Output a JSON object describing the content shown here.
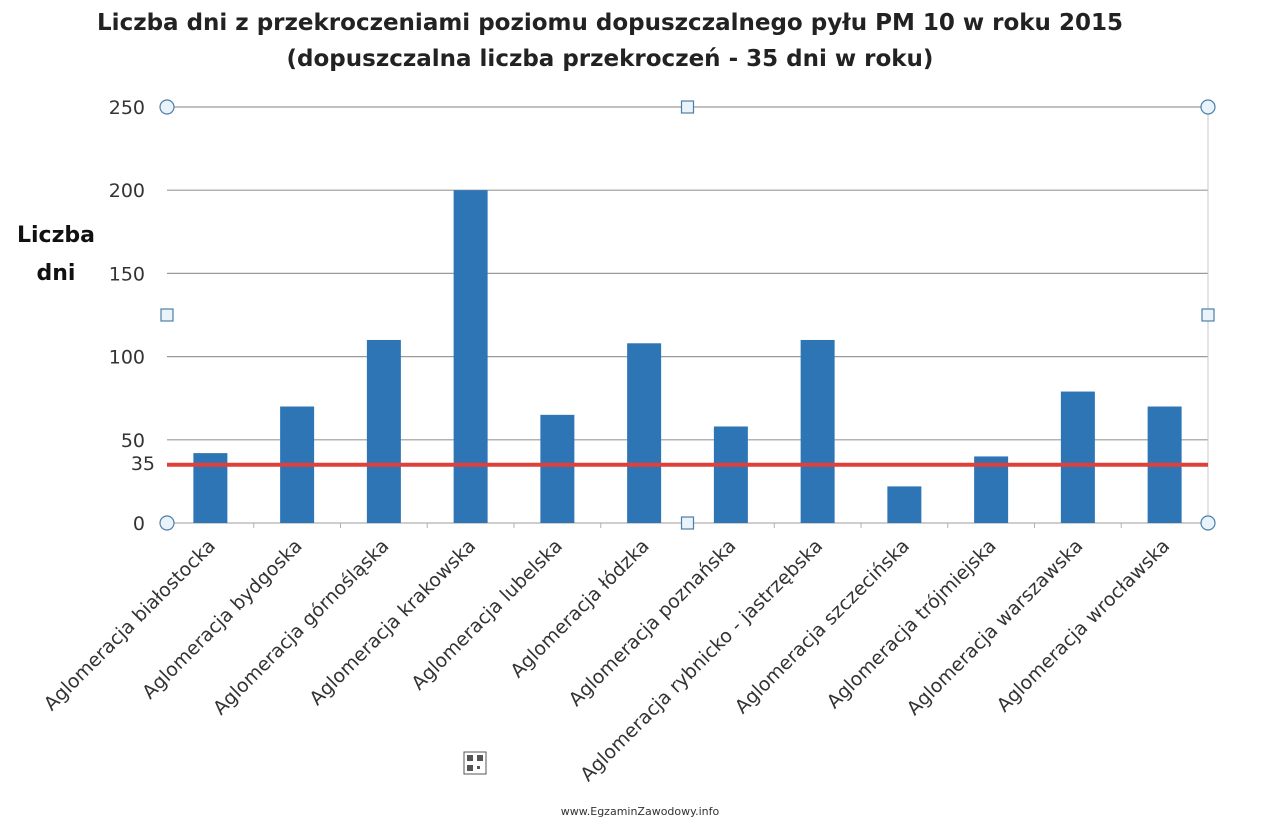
{
  "chart_data": {
    "type": "bar",
    "title": "Liczba dni z przekroczeniami poziomu dopuszczalnego pyłu PM 10 w roku 2015",
    "subtitle": "(dopuszczalna liczba przekroczeń - 35 dni w roku)",
    "ylabel": "Liczba dni",
    "xlabel": "",
    "ylim": [
      0,
      250
    ],
    "yticks": [
      "0",
      "50",
      "100",
      "150",
      "200",
      "250"
    ],
    "grid": true,
    "legend": "none",
    "categories": [
      "Aglomeracja białostocka",
      "Aglomeracja bydgoska",
      "Aglomeracja górnośląska",
      "Aglomeracja krakowska",
      "Aglomeracja lubelska",
      "Aglomeracja łódzka",
      "Aglomeracja poznańska",
      "Aglomeracja rybnicko - jastrzębska",
      "Aglomeracja szczecińska",
      "Aglomeracja trójmiejska",
      "Aglomeracja warszawska",
      "Aglomeracja wrocławska"
    ],
    "values": [
      42,
      70,
      110,
      200,
      65,
      108,
      58,
      110,
      22,
      40,
      79,
      70
    ],
    "bar_color": "#2E75B6",
    "reference_line": {
      "value": 35,
      "label": "35",
      "color": "#E0403A"
    }
  },
  "footer": {
    "watermark_text": "www.EgzaminZawodowy.info"
  }
}
